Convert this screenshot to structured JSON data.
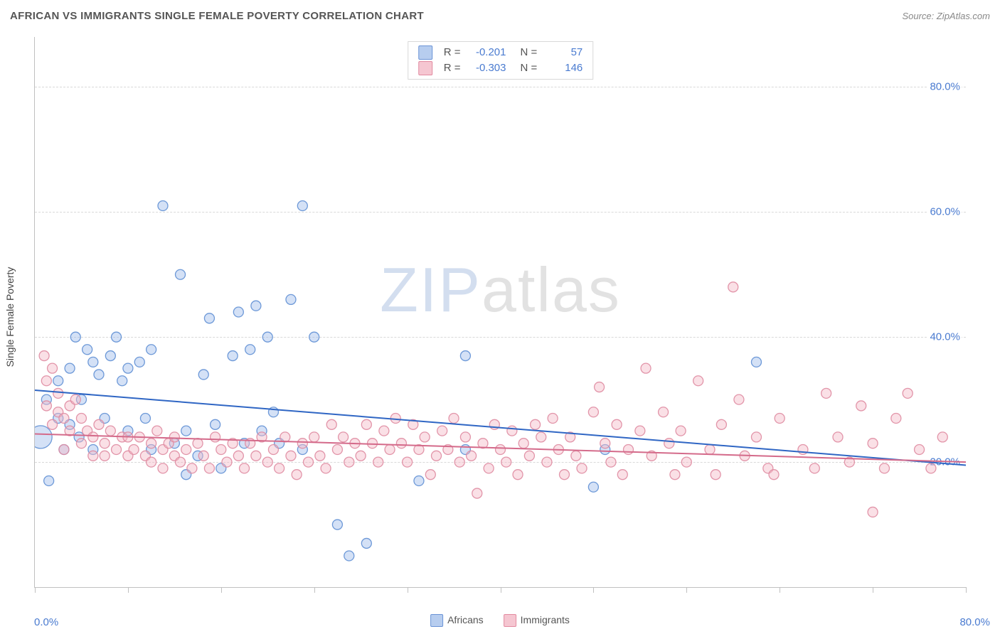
{
  "header": {
    "title": "AFRICAN VS IMMIGRANTS SINGLE FEMALE POVERTY CORRELATION CHART",
    "source_prefix": "Source: ",
    "source_name": "ZipAtlas.com"
  },
  "watermark": {
    "part1": "ZIP",
    "part2": "atlas"
  },
  "chart": {
    "type": "scatter",
    "y_axis_title": "Single Female Poverty",
    "xlim": [
      0,
      80
    ],
    "ylim": [
      0,
      88
    ],
    "x_tick_positions": [
      0,
      8,
      16,
      24,
      32,
      40,
      48,
      56,
      64,
      72,
      80
    ],
    "y_gridlines": [
      20,
      40,
      60,
      80
    ],
    "y_grid_labels": [
      "20.0%",
      "40.0%",
      "60.0%",
      "80.0%"
    ],
    "x_min_label": "0.0%",
    "x_max_label": "80.0%",
    "background_color": "#ffffff",
    "grid_color": "#d8d8d8",
    "axis_color": "#c0c0c0",
    "legend_bottom": {
      "items": [
        {
          "label": "Africans",
          "fill": "#b7cdef",
          "stroke": "#6b94d6"
        },
        {
          "label": "Immigrants",
          "fill": "#f5c6d1",
          "stroke": "#e28aa0"
        }
      ]
    },
    "stat_legend": {
      "rows": [
        {
          "fill": "#b7cdef",
          "stroke": "#6b94d6",
          "r_label": "R =",
          "r_val": "-0.201",
          "n_label": "N =",
          "n_val": "57"
        },
        {
          "fill": "#f5c6d1",
          "stroke": "#e28aa0",
          "r_label": "R =",
          "r_val": "-0.303",
          "n_label": "N =",
          "n_val": "146"
        }
      ]
    },
    "marker_radius": 7,
    "marker_fill_opacity": 0.45,
    "marker_stroke_opacity": 0.9,
    "series": [
      {
        "name": "africans",
        "fill": "#9fbdea",
        "stroke": "#5f8fd4",
        "trend": {
          "x1": 0,
          "y1": 31.5,
          "x2": 80,
          "y2": 19.5,
          "color": "#2f66c4",
          "width": 2
        },
        "points": [
          {
            "x": 0.5,
            "y": 24,
            "r": 16
          },
          {
            "x": 1,
            "y": 30
          },
          {
            "x": 1.2,
            "y": 17
          },
          {
            "x": 2,
            "y": 27
          },
          {
            "x": 2,
            "y": 33
          },
          {
            "x": 2.5,
            "y": 22
          },
          {
            "x": 3,
            "y": 35
          },
          {
            "x": 3,
            "y": 26
          },
          {
            "x": 3.5,
            "y": 40
          },
          {
            "x": 3.8,
            "y": 24
          },
          {
            "x": 4,
            "y": 30
          },
          {
            "x": 4.5,
            "y": 38
          },
          {
            "x": 5,
            "y": 36
          },
          {
            "x": 5,
            "y": 22
          },
          {
            "x": 5.5,
            "y": 34
          },
          {
            "x": 6,
            "y": 27
          },
          {
            "x": 6.5,
            "y": 37
          },
          {
            "x": 7,
            "y": 40
          },
          {
            "x": 7.5,
            "y": 33
          },
          {
            "x": 8,
            "y": 35
          },
          {
            "x": 8,
            "y": 25
          },
          {
            "x": 9,
            "y": 36
          },
          {
            "x": 9.5,
            "y": 27
          },
          {
            "x": 10,
            "y": 38
          },
          {
            "x": 10,
            "y": 22
          },
          {
            "x": 11,
            "y": 61
          },
          {
            "x": 12,
            "y": 23
          },
          {
            "x": 12.5,
            "y": 50
          },
          {
            "x": 13,
            "y": 25
          },
          {
            "x": 13,
            "y": 18
          },
          {
            "x": 14,
            "y": 21
          },
          {
            "x": 14.5,
            "y": 34
          },
          {
            "x": 15,
            "y": 43
          },
          {
            "x": 15.5,
            "y": 26
          },
          {
            "x": 16,
            "y": 19
          },
          {
            "x": 17,
            "y": 37
          },
          {
            "x": 17.5,
            "y": 44
          },
          {
            "x": 18,
            "y": 23
          },
          {
            "x": 18.5,
            "y": 38
          },
          {
            "x": 19,
            "y": 45
          },
          {
            "x": 19.5,
            "y": 25
          },
          {
            "x": 20,
            "y": 40
          },
          {
            "x": 20.5,
            "y": 28
          },
          {
            "x": 21,
            "y": 23
          },
          {
            "x": 22,
            "y": 46
          },
          {
            "x": 23,
            "y": 61
          },
          {
            "x": 23,
            "y": 22
          },
          {
            "x": 24,
            "y": 40
          },
          {
            "x": 26,
            "y": 10
          },
          {
            "x": 27,
            "y": 5
          },
          {
            "x": 28.5,
            "y": 7
          },
          {
            "x": 33,
            "y": 17
          },
          {
            "x": 37,
            "y": 37
          },
          {
            "x": 37,
            "y": 22
          },
          {
            "x": 48,
            "y": 16
          },
          {
            "x": 49,
            "y": 22
          },
          {
            "x": 62,
            "y": 36
          }
        ]
      },
      {
        "name": "immigrants",
        "fill": "#f3bac8",
        "stroke": "#df8ba1",
        "trend": {
          "x1": 0,
          "y1": 24.5,
          "x2": 80,
          "y2": 20.0,
          "color": "#d46a8a",
          "width": 2
        },
        "points": [
          {
            "x": 0.8,
            "y": 37
          },
          {
            "x": 1,
            "y": 33
          },
          {
            "x": 1,
            "y": 29
          },
          {
            "x": 1.5,
            "y": 35
          },
          {
            "x": 1.5,
            "y": 26
          },
          {
            "x": 2,
            "y": 31
          },
          {
            "x": 2,
            "y": 28
          },
          {
            "x": 2.5,
            "y": 27
          },
          {
            "x": 2.5,
            "y": 22
          },
          {
            "x": 3,
            "y": 29
          },
          {
            "x": 3,
            "y": 25
          },
          {
            "x": 3.5,
            "y": 30
          },
          {
            "x": 4,
            "y": 27
          },
          {
            "x": 4,
            "y": 23
          },
          {
            "x": 4.5,
            "y": 25
          },
          {
            "x": 5,
            "y": 24
          },
          {
            "x": 5,
            "y": 21
          },
          {
            "x": 5.5,
            "y": 26
          },
          {
            "x": 6,
            "y": 23
          },
          {
            "x": 6,
            "y": 21
          },
          {
            "x": 6.5,
            "y": 25
          },
          {
            "x": 7,
            "y": 22
          },
          {
            "x": 7.5,
            "y": 24
          },
          {
            "x": 8,
            "y": 21
          },
          {
            "x": 8,
            "y": 24
          },
          {
            "x": 8.5,
            "y": 22
          },
          {
            "x": 9,
            "y": 24
          },
          {
            "x": 9.5,
            "y": 21
          },
          {
            "x": 10,
            "y": 23
          },
          {
            "x": 10,
            "y": 20
          },
          {
            "x": 10.5,
            "y": 25
          },
          {
            "x": 11,
            "y": 22
          },
          {
            "x": 11,
            "y": 19
          },
          {
            "x": 11.5,
            "y": 23
          },
          {
            "x": 12,
            "y": 21
          },
          {
            "x": 12,
            "y": 24
          },
          {
            "x": 12.5,
            "y": 20
          },
          {
            "x": 13,
            "y": 22
          },
          {
            "x": 13.5,
            "y": 19
          },
          {
            "x": 14,
            "y": 23
          },
          {
            "x": 14.5,
            "y": 21
          },
          {
            "x": 15,
            "y": 19
          },
          {
            "x": 15.5,
            "y": 24
          },
          {
            "x": 16,
            "y": 22
          },
          {
            "x": 16.5,
            "y": 20
          },
          {
            "x": 17,
            "y": 23
          },
          {
            "x": 17.5,
            "y": 21
          },
          {
            "x": 18,
            "y": 19
          },
          {
            "x": 18.5,
            "y": 23
          },
          {
            "x": 19,
            "y": 21
          },
          {
            "x": 19.5,
            "y": 24
          },
          {
            "x": 20,
            "y": 20
          },
          {
            "x": 20.5,
            "y": 22
          },
          {
            "x": 21,
            "y": 19
          },
          {
            "x": 21.5,
            "y": 24
          },
          {
            "x": 22,
            "y": 21
          },
          {
            "x": 22.5,
            "y": 18
          },
          {
            "x": 23,
            "y": 23
          },
          {
            "x": 23.5,
            "y": 20
          },
          {
            "x": 24,
            "y": 24
          },
          {
            "x": 24.5,
            "y": 21
          },
          {
            "x": 25,
            "y": 19
          },
          {
            "x": 25.5,
            "y": 26
          },
          {
            "x": 26,
            "y": 22
          },
          {
            "x": 26.5,
            "y": 24
          },
          {
            "x": 27,
            "y": 20
          },
          {
            "x": 27.5,
            "y": 23
          },
          {
            "x": 28,
            "y": 21
          },
          {
            "x": 28.5,
            "y": 26
          },
          {
            "x": 29,
            "y": 23
          },
          {
            "x": 29.5,
            "y": 20
          },
          {
            "x": 30,
            "y": 25
          },
          {
            "x": 30.5,
            "y": 22
          },
          {
            "x": 31,
            "y": 27
          },
          {
            "x": 31.5,
            "y": 23
          },
          {
            "x": 32,
            "y": 20
          },
          {
            "x": 32.5,
            "y": 26
          },
          {
            "x": 33,
            "y": 22
          },
          {
            "x": 33.5,
            "y": 24
          },
          {
            "x": 34,
            "y": 18
          },
          {
            "x": 34.5,
            "y": 21
          },
          {
            "x": 35,
            "y": 25
          },
          {
            "x": 35.5,
            "y": 22
          },
          {
            "x": 36,
            "y": 27
          },
          {
            "x": 36.5,
            "y": 20
          },
          {
            "x": 37,
            "y": 24
          },
          {
            "x": 37.5,
            "y": 21
          },
          {
            "x": 38,
            "y": 15
          },
          {
            "x": 38.5,
            "y": 23
          },
          {
            "x": 39,
            "y": 19
          },
          {
            "x": 39.5,
            "y": 26
          },
          {
            "x": 40,
            "y": 22
          },
          {
            "x": 40.5,
            "y": 20
          },
          {
            "x": 41,
            "y": 25
          },
          {
            "x": 41.5,
            "y": 18
          },
          {
            "x": 42,
            "y": 23
          },
          {
            "x": 42.5,
            "y": 21
          },
          {
            "x": 43,
            "y": 26
          },
          {
            "x": 43.5,
            "y": 24
          },
          {
            "x": 44,
            "y": 20
          },
          {
            "x": 44.5,
            "y": 27
          },
          {
            "x": 45,
            "y": 22
          },
          {
            "x": 45.5,
            "y": 18
          },
          {
            "x": 46,
            "y": 24
          },
          {
            "x": 46.5,
            "y": 21
          },
          {
            "x": 47,
            "y": 19
          },
          {
            "x": 48,
            "y": 28
          },
          {
            "x": 48.5,
            "y": 32
          },
          {
            "x": 49,
            "y": 23
          },
          {
            "x": 49.5,
            "y": 20
          },
          {
            "x": 50,
            "y": 26
          },
          {
            "x": 50.5,
            "y": 18
          },
          {
            "x": 51,
            "y": 22
          },
          {
            "x": 52,
            "y": 25
          },
          {
            "x": 52.5,
            "y": 35
          },
          {
            "x": 53,
            "y": 21
          },
          {
            "x": 54,
            "y": 28
          },
          {
            "x": 54.5,
            "y": 23
          },
          {
            "x": 55,
            "y": 18
          },
          {
            "x": 55.5,
            "y": 25
          },
          {
            "x": 56,
            "y": 20
          },
          {
            "x": 57,
            "y": 33
          },
          {
            "x": 58,
            "y": 22
          },
          {
            "x": 58.5,
            "y": 18
          },
          {
            "x": 59,
            "y": 26
          },
          {
            "x": 60,
            "y": 48
          },
          {
            "x": 60.5,
            "y": 30
          },
          {
            "x": 61,
            "y": 21
          },
          {
            "x": 62,
            "y": 24
          },
          {
            "x": 63,
            "y": 19
          },
          {
            "x": 63.5,
            "y": 18
          },
          {
            "x": 64,
            "y": 27
          },
          {
            "x": 66,
            "y": 22
          },
          {
            "x": 67,
            "y": 19
          },
          {
            "x": 68,
            "y": 31
          },
          {
            "x": 69,
            "y": 24
          },
          {
            "x": 70,
            "y": 20
          },
          {
            "x": 71,
            "y": 29
          },
          {
            "x": 72,
            "y": 23
          },
          {
            "x": 73,
            "y": 19
          },
          {
            "x": 74,
            "y": 27
          },
          {
            "x": 75,
            "y": 31
          },
          {
            "x": 76,
            "y": 22
          },
          {
            "x": 77,
            "y": 19
          },
          {
            "x": 78,
            "y": 24
          },
          {
            "x": 72,
            "y": 12
          }
        ]
      }
    ]
  }
}
